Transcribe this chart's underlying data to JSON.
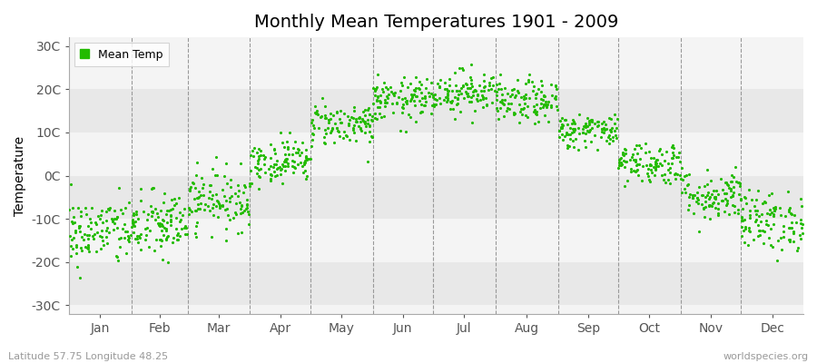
{
  "title": "Monthly Mean Temperatures 1901 - 2009",
  "ylabel": "Temperature",
  "xlabel": "",
  "subtitle_left": "Latitude 57.75 Longitude 48.25",
  "subtitle_right": "worldspecies.org",
  "legend_label": "Mean Temp",
  "dot_color": "#22bb00",
  "bg_color": "#f4f4f4",
  "band_colors": [
    "#e8e8e8",
    "#f4f4f4"
  ],
  "yticks": [
    -30,
    -20,
    -10,
    0,
    10,
    20,
    30
  ],
  "ytick_labels": [
    "-30C",
    "-20C",
    "-10C",
    "0C",
    "10C",
    "20C",
    "30C"
  ],
  "ylim": [
    -32,
    32
  ],
  "months": [
    "Jan",
    "Feb",
    "Mar",
    "Apr",
    "May",
    "Jun",
    "Jul",
    "Aug",
    "Sep",
    "Oct",
    "Nov",
    "Dec"
  ],
  "month_days": [
    31,
    28,
    31,
    30,
    31,
    30,
    31,
    31,
    30,
    31,
    30,
    31
  ],
  "n_years": 109,
  "mean_temps": [
    -13.0,
    -11.5,
    -5.5,
    3.5,
    12.0,
    17.5,
    19.5,
    17.0,
    10.5,
    3.0,
    -4.5,
    -10.5
  ],
  "std_temps": [
    4.0,
    4.0,
    3.5,
    2.5,
    2.5,
    2.5,
    2.5,
    2.5,
    2.0,
    2.5,
    3.0,
    3.5
  ],
  "seed": 42
}
